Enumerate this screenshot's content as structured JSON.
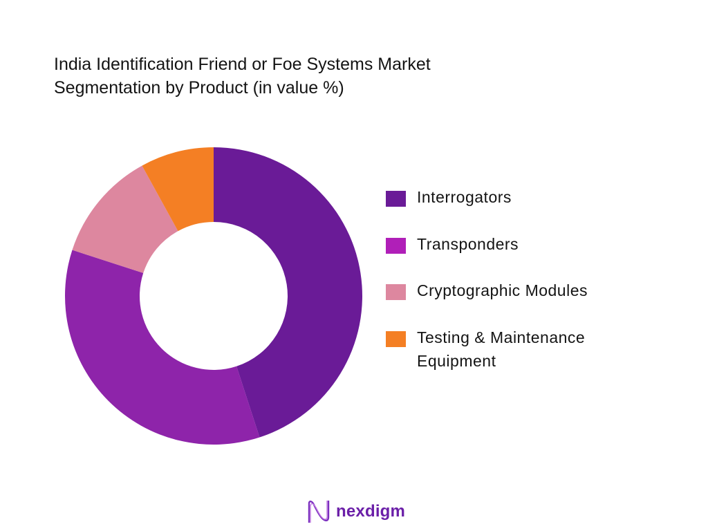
{
  "title": {
    "line1": "India Identification Friend or Foe Systems Market",
    "line2": "Segmentation by Product (in value %)"
  },
  "legend": {
    "items": [
      {
        "label": "Interrogators",
        "color": "#6a1b97"
      },
      {
        "label": "Transponders",
        "color": "#b01fb8"
      },
      {
        "label": "Cryptographic Modules",
        "color": "#dd879f"
      },
      {
        "label": "Testing & Maintenance Equipment",
        "color": "#f47f24"
      }
    ]
  },
  "brand": {
    "name": "nexdigm",
    "color": "#6b1fa8"
  },
  "chart_data": {
    "type": "pie",
    "subtype": "donut",
    "title": "India Identification Friend or Foe Systems Market Segmentation by Product (in value %)",
    "categories": [
      "Interrogators",
      "Transponders",
      "Cryptographic Modules",
      "Testing & Maintenance Equipment"
    ],
    "values": [
      45,
      35,
      12,
      8
    ],
    "colors": [
      "#6a1b97",
      "#8e24aa",
      "#dd879f",
      "#f47f24"
    ],
    "legend_position": "right",
    "start_angle": "top, clockwise",
    "data_labels": false
  }
}
